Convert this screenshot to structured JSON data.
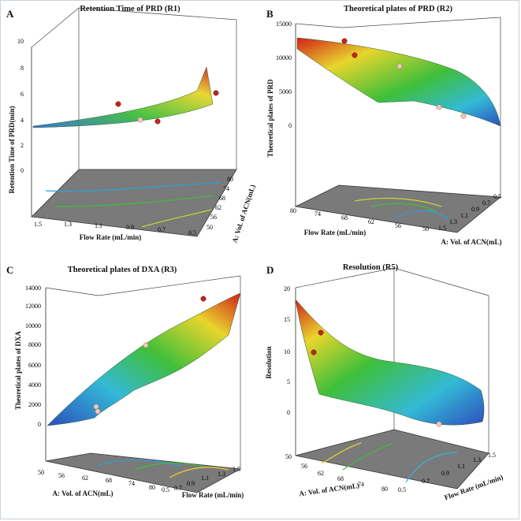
{
  "colors": {
    "surface_low": "#2d4fbd",
    "surface_mid": "#3fbf3a",
    "surface_high": "#d0201a",
    "floor": "#646464",
    "point_high": "#c0281c",
    "point_low": "#f2c9b6"
  },
  "chart_data": [
    {
      "panel_letter": "A",
      "type": "surface3d",
      "title": "Retention Time of PRD (R1)",
      "zlabel": "Retention Time of PRD(min)",
      "xlabel": "Flow Rate (mL/min)",
      "ylabel": "A: Vol. of ACN(mL)",
      "z_ticks": [
        "0",
        "2",
        "4",
        "6",
        "8",
        "10"
      ],
      "x_ticks": [
        "1.5",
        "1.3",
        "1.1",
        "0.9",
        "0.7",
        "0.5"
      ],
      "y_ticks": [
        "50",
        "56",
        "62",
        "68",
        "74",
        "80"
      ],
      "zlim": [
        0,
        10
      ],
      "flow_range": [
        0.5,
        1.5
      ],
      "acn_range": [
        50,
        80
      ],
      "surface_range": [
        3.3,
        7.8
      ],
      "points": [
        {
          "flow": 0.9,
          "acn": 80,
          "z": 4.8,
          "kind": "high"
        },
        {
          "flow": 0.9,
          "acn": 50,
          "z": 3.9,
          "kind": "low"
        },
        {
          "flow": 0.5,
          "acn": 56,
          "z": 5.0,
          "kind": "high"
        },
        {
          "flow": 0.5,
          "acn": 80,
          "z": 5.2,
          "kind": "high"
        }
      ]
    },
    {
      "panel_letter": "B",
      "type": "surface3d",
      "title": "Theoretical plates of PRD (R2)",
      "zlabel": "Theoretical plates of PRD",
      "xlabel": "Flow Rate (mL/min)",
      "ylabel": "A: Vol. of ACN(mL)",
      "z_ticks": [
        "0",
        "5000",
        "10000",
        "15000"
      ],
      "x_ticks": [
        "80",
        "74",
        "68",
        "62",
        "56",
        "50"
      ],
      "y_ticks": [
        "1.5",
        "1.3",
        "1.1",
        "0.9",
        "0.7",
        "0.5"
      ],
      "zlim": [
        0,
        15000
      ],
      "surface_range": [
        0,
        13500
      ],
      "points": [
        {
          "z": 12700,
          "kind": "high"
        },
        {
          "z": 10500,
          "kind": "high"
        },
        {
          "z": 9200,
          "kind": "low"
        },
        {
          "z": 4500,
          "kind": "low"
        },
        {
          "z": 4000,
          "kind": "low"
        }
      ]
    },
    {
      "panel_letter": "C",
      "type": "surface3d",
      "title": "Theoretical plates of DXA (R3)",
      "zlabel": "Theoretical plates of DXA",
      "xlabel": "A: Vol. of ACN(mL)",
      "ylabel": "Flow Rate (mL/min)",
      "z_ticks": [
        "0",
        "2000",
        "4000",
        "6000",
        "8000",
        "10000",
        "12000",
        "14000"
      ],
      "x_ticks": [
        "50",
        "56",
        "62",
        "68",
        "74",
        "80"
      ],
      "y_ticks": [
        "0.5",
        "0.7",
        "0.9",
        "1.1",
        "1.3",
        "1.5"
      ],
      "zlim": [
        0,
        14000
      ],
      "surface_range": [
        0,
        13000
      ],
      "points": [
        {
          "z": 12500,
          "kind": "high"
        },
        {
          "z": 8500,
          "kind": "low"
        },
        {
          "z": 2200,
          "kind": "low"
        },
        {
          "z": 1700,
          "kind": "low"
        }
      ]
    },
    {
      "panel_letter": "D",
      "type": "surface3d",
      "title": "Resolution (R5)",
      "zlabel": "Resolution",
      "xlabel": "A: Vol. of ACN(mL)",
      "ylabel": "Flow Rate (mL/min)",
      "z_ticks": [
        "0",
        "5",
        "10",
        "15",
        "20"
      ],
      "x_ticks": [
        "50",
        "56",
        "62",
        "68",
        "74",
        "80"
      ],
      "y_ticks": [
        "0.5",
        "0.7",
        "0.9",
        "1.1",
        "1.3",
        "1.5"
      ],
      "zlim": [
        0,
        20
      ],
      "surface_range": [
        0,
        18
      ],
      "points": [
        {
          "z": 12.5,
          "kind": "high"
        },
        {
          "z": 10.0,
          "kind": "high"
        },
        {
          "z": 1.0,
          "kind": "low"
        }
      ]
    }
  ]
}
